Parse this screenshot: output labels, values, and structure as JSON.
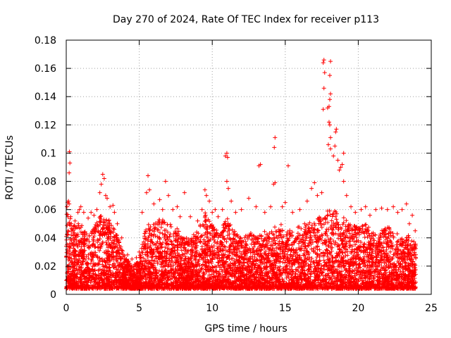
{
  "chart_data": {
    "type": "scatter",
    "title": "Day 270 of 2024, Rate Of TEC Index for receiver p113",
    "xlabel": "GPS time / hours",
    "ylabel": "ROTI / TECUs",
    "xlim": [
      0,
      25
    ],
    "ylim": [
      0,
      0.18
    ],
    "xticks": [
      "0",
      "5",
      "10",
      "15",
      "20",
      "25"
    ],
    "yticks": [
      "0",
      "0.02",
      "0.04",
      "0.06",
      "0.08",
      "0.1",
      "0.12",
      "0.14",
      "0.16",
      "0.18"
    ],
    "grid": true,
    "marker": "+",
    "color": "#ff0000",
    "series": [
      {
        "name": "ROTI",
        "points": [
          [
            0.05,
            0.062
          ],
          [
            0.1,
            0.065
          ],
          [
            0.15,
            0.066
          ],
          [
            0.2,
            0.064
          ],
          [
            0.22,
            0.101
          ],
          [
            0.25,
            0.093
          ],
          [
            0.2,
            0.086
          ],
          [
            0.3,
            0.055
          ],
          [
            0.35,
            0.05
          ],
          [
            0.4,
            0.046
          ],
          [
            0.5,
            0.048
          ],
          [
            0.6,
            0.052
          ],
          [
            0.8,
            0.058
          ],
          [
            0.9,
            0.06
          ],
          [
            1.0,
            0.062
          ],
          [
            1.2,
            0.058
          ],
          [
            1.5,
            0.054
          ],
          [
            1.7,
            0.058
          ],
          [
            1.9,
            0.056
          ],
          [
            2.1,
            0.06
          ],
          [
            2.3,
            0.072
          ],
          [
            2.4,
            0.078
          ],
          [
            2.5,
            0.085
          ],
          [
            2.6,
            0.082
          ],
          [
            2.7,
            0.07
          ],
          [
            2.8,
            0.068
          ],
          [
            3.0,
            0.062
          ],
          [
            3.2,
            0.063
          ],
          [
            3.3,
            0.058
          ],
          [
            3.5,
            0.05
          ],
          [
            3.8,
            0.04
          ],
          [
            4.2,
            0.028
          ],
          [
            4.5,
            0.025
          ],
          [
            4.8,
            0.026
          ],
          [
            5.0,
            0.03
          ],
          [
            5.2,
            0.058
          ],
          [
            5.5,
            0.072
          ],
          [
            5.6,
            0.084
          ],
          [
            5.7,
            0.074
          ],
          [
            6.0,
            0.064
          ],
          [
            6.4,
            0.067
          ],
          [
            6.6,
            0.06
          ],
          [
            6.8,
            0.08
          ],
          [
            7.0,
            0.07
          ],
          [
            7.3,
            0.06
          ],
          [
            7.6,
            0.062
          ],
          [
            7.8,
            0.055
          ],
          [
            8.1,
            0.072
          ],
          [
            8.5,
            0.055
          ],
          [
            9.0,
            0.052
          ],
          [
            9.3,
            0.06
          ],
          [
            9.5,
            0.074
          ],
          [
            9.6,
            0.07
          ],
          [
            9.8,
            0.066
          ],
          [
            10.0,
            0.058
          ],
          [
            10.2,
            0.06
          ],
          [
            10.4,
            0.055
          ],
          [
            10.7,
            0.06
          ],
          [
            10.9,
            0.098
          ],
          [
            11.0,
            0.1
          ],
          [
            11.05,
            0.097
          ],
          [
            11.0,
            0.08
          ],
          [
            11.1,
            0.075
          ],
          [
            11.3,
            0.066
          ],
          [
            11.6,
            0.058
          ],
          [
            12.0,
            0.06
          ],
          [
            12.5,
            0.068
          ],
          [
            13.0,
            0.062
          ],
          [
            13.2,
            0.091
          ],
          [
            13.3,
            0.092
          ],
          [
            13.6,
            0.058
          ],
          [
            14.0,
            0.062
          ],
          [
            14.2,
            0.078
          ],
          [
            14.3,
            0.079
          ],
          [
            14.25,
            0.104
          ],
          [
            14.3,
            0.111
          ],
          [
            14.8,
            0.062
          ],
          [
            15.0,
            0.065
          ],
          [
            15.2,
            0.091
          ],
          [
            15.5,
            0.058
          ],
          [
            16.0,
            0.06
          ],
          [
            16.5,
            0.066
          ],
          [
            16.8,
            0.075
          ],
          [
            17.0,
            0.079
          ],
          [
            17.2,
            0.07
          ],
          [
            17.5,
            0.072
          ],
          [
            17.6,
            0.164
          ],
          [
            17.65,
            0.166
          ],
          [
            17.7,
            0.157
          ],
          [
            17.65,
            0.146
          ],
          [
            17.6,
            0.131
          ],
          [
            17.9,
            0.132
          ],
          [
            18.0,
            0.133
          ],
          [
            18.1,
            0.165
          ],
          [
            18.05,
            0.155
          ],
          [
            18.1,
            0.142
          ],
          [
            18.05,
            0.138
          ],
          [
            18.0,
            0.122
          ],
          [
            18.05,
            0.12
          ],
          [
            18.1,
            0.111
          ],
          [
            17.95,
            0.106
          ],
          [
            18.1,
            0.103
          ],
          [
            18.3,
            0.098
          ],
          [
            18.4,
            0.105
          ],
          [
            18.45,
            0.115
          ],
          [
            18.5,
            0.117
          ],
          [
            18.6,
            0.095
          ],
          [
            18.7,
            0.088
          ],
          [
            18.8,
            0.09
          ],
          [
            19.0,
            0.1
          ],
          [
            18.9,
            0.092
          ],
          [
            19.0,
            0.08
          ],
          [
            19.2,
            0.07
          ],
          [
            19.5,
            0.062
          ],
          [
            19.8,
            0.058
          ],
          [
            20.2,
            0.06
          ],
          [
            20.5,
            0.062
          ],
          [
            20.8,
            0.056
          ],
          [
            21.2,
            0.06
          ],
          [
            21.6,
            0.061
          ],
          [
            22.0,
            0.06
          ],
          [
            22.4,
            0.062
          ],
          [
            22.7,
            0.058
          ],
          [
            23.0,
            0.06
          ],
          [
            23.3,
            0.064
          ],
          [
            23.5,
            0.05
          ],
          [
            23.7,
            0.056
          ],
          [
            23.9,
            0.045
          ]
        ]
      }
    ]
  }
}
